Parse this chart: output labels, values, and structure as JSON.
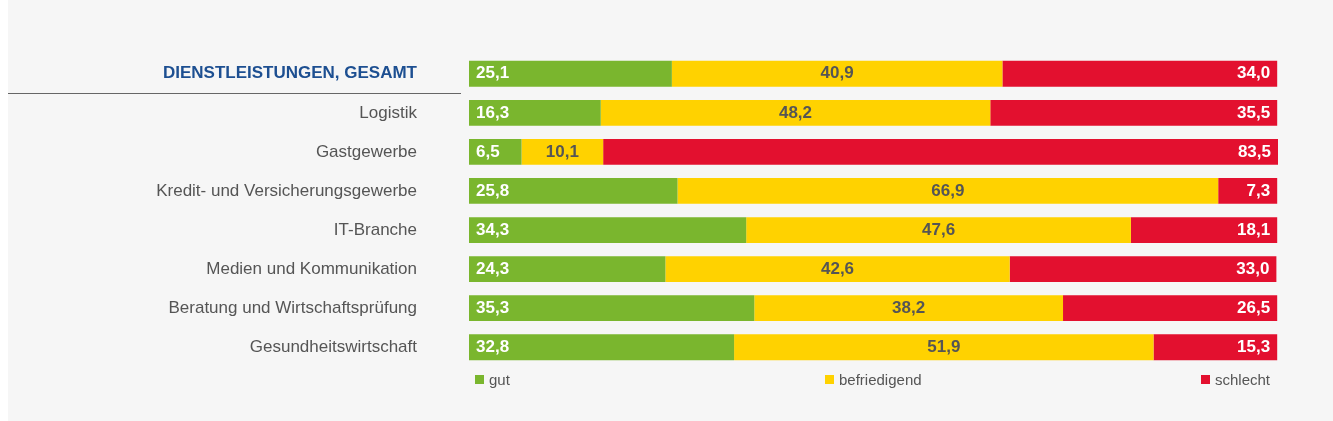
{
  "chart_data": {
    "type": "bar",
    "orientation": "horizontal",
    "stacked": true,
    "legend": "bottom",
    "categories": [
      "DIENSTLEISTUNGEN, GESAMT",
      "Logistik",
      "Gastgewerbe",
      "Kredit- und Versicherungsgewerbe",
      "IT-Branche",
      "Medien und Kommunikation",
      "Beratung und Wirtschaftsprüfung",
      "Gesundheitswirtschaft"
    ],
    "series": [
      {
        "name": "gut",
        "color": "#7ab62e",
        "values": [
          25.1,
          16.3,
          6.5,
          25.8,
          34.3,
          24.3,
          35.3,
          32.8
        ],
        "value_labels": [
          "25,1",
          "16,3",
          "6,5",
          "25,8",
          "34,3",
          "24,3",
          "35,3",
          "32,8"
        ]
      },
      {
        "name": "befriedigend",
        "color": "#ffd200",
        "values": [
          40.9,
          48.2,
          10.1,
          66.9,
          47.6,
          42.6,
          38.2,
          51.9
        ],
        "value_labels": [
          "40,9",
          "48,2",
          "10,1",
          "66,9",
          "47,6",
          "42,6",
          "38,2",
          "51,9"
        ]
      },
      {
        "name": "schlecht",
        "color": "#e3102f",
        "values": [
          34.0,
          35.5,
          83.5,
          7.3,
          18.1,
          33.0,
          26.5,
          15.3
        ],
        "value_labels": [
          "34,0",
          "35,5",
          "83,5",
          "7,3",
          "18,1",
          "33,0",
          "26,5",
          "15,3"
        ]
      }
    ]
  }
}
